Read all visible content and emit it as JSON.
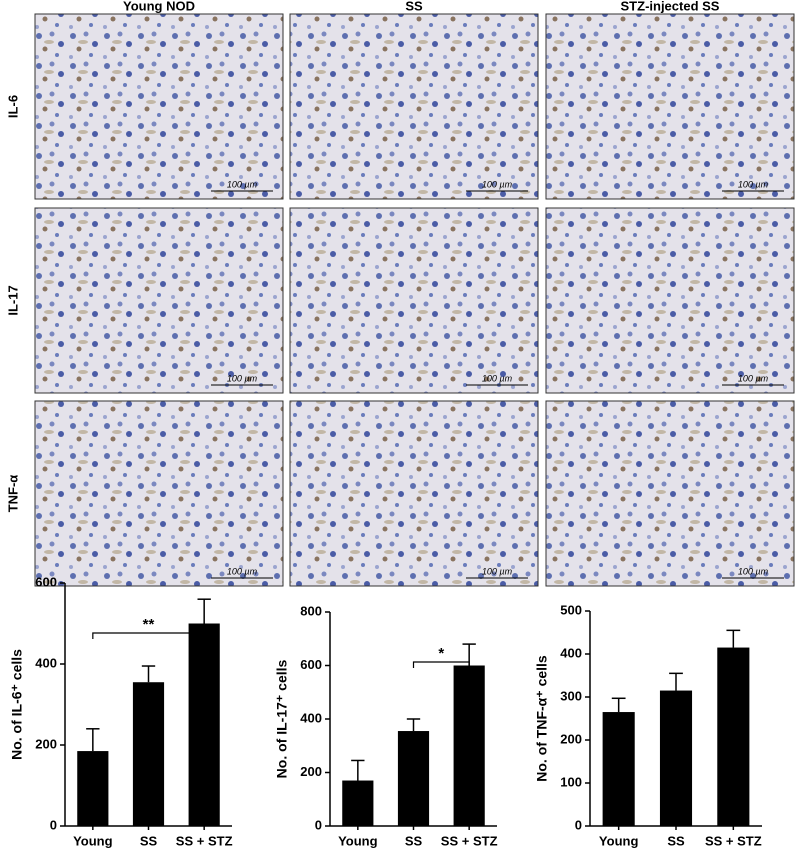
{
  "figure": {
    "columns": [
      "Young NOD",
      "SS",
      "STZ-injected SS"
    ],
    "rows": [
      "IL-6",
      "IL-17",
      "TNF-α"
    ],
    "scale_bar": "100 µm"
  },
  "chart_data": [
    {
      "type": "bar",
      "y_label": "No. of IL-6⁺ cells",
      "categories": [
        "Young",
        "SS",
        "SS + STZ"
      ],
      "values": [
        185,
        355,
        500
      ],
      "errors": [
        55,
        40,
        60
      ],
      "color": "#000000",
      "ylim": [
        0,
        600
      ],
      "yticks": [
        0,
        200,
        400,
        600
      ],
      "significance": [
        {
          "label": "**",
          "from": 0,
          "to": 2
        }
      ]
    },
    {
      "type": "bar",
      "y_label": "No. of IL-17⁺ cells",
      "categories": [
        "Young",
        "SS",
        "SS + STZ"
      ],
      "values": [
        170,
        355,
        600
      ],
      "errors": [
        75,
        45,
        80
      ],
      "color": "#000000",
      "ylim": [
        0,
        800
      ],
      "yticks": [
        0,
        200,
        400,
        600,
        800
      ],
      "significance": [
        {
          "label": "*",
          "from": 1,
          "to": 2
        }
      ]
    },
    {
      "type": "bar",
      "y_label": "No. of TNF-α⁺ cells",
      "categories": [
        "Young",
        "SS",
        "SS + STZ"
      ],
      "values": [
        265,
        315,
        415
      ],
      "errors": [
        32,
        40,
        40
      ],
      "color": "#000000",
      "ylim": [
        0,
        500
      ],
      "yticks": [
        0,
        100,
        200,
        300,
        400,
        500
      ]
    }
  ]
}
